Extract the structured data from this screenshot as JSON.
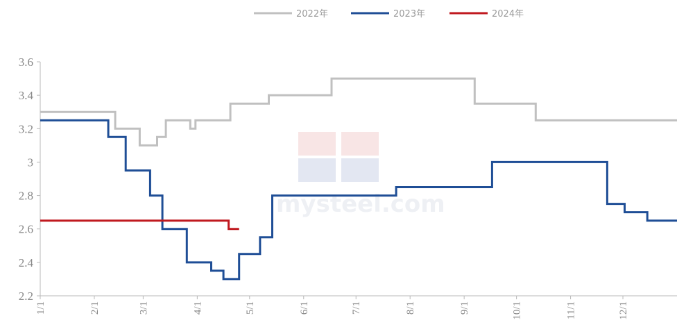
{
  "chart_data": {
    "type": "line",
    "step": true,
    "ylim": [
      2.2,
      3.6
    ],
    "yticks": [
      2.2,
      2.4,
      2.6,
      2.8,
      3,
      3.2,
      3.4,
      3.6
    ],
    "ytick_labels": [
      "2.2",
      "2.4",
      "2.6",
      "2.8",
      "3",
      "3.2",
      "3.4",
      "3.6"
    ],
    "xlim": [
      1,
      366
    ],
    "x_ticks": [
      {
        "label": "1/1",
        "day": 1
      },
      {
        "label": "2/1",
        "day": 32
      },
      {
        "label": "3/1",
        "day": 60
      },
      {
        "label": "4/1",
        "day": 91
      },
      {
        "label": "5/1",
        "day": 121
      },
      {
        "label": "6/1",
        "day": 152
      },
      {
        "label": "7/1",
        "day": 182
      },
      {
        "label": "8/1",
        "day": 213
      },
      {
        "label": "9/1",
        "day": 244
      },
      {
        "label": "10/1",
        "day": 274
      },
      {
        "label": "11/1",
        "day": 305
      },
      {
        "label": "12/1",
        "day": 335
      }
    ],
    "grid": false,
    "legend_position": "top-center",
    "watermark": "mysteel.com",
    "series": [
      {
        "name": "2022年",
        "color": "#c0c0c0",
        "points": [
          [
            1,
            3.3
          ],
          [
            44,
            3.3
          ],
          [
            44,
            3.2
          ],
          [
            58,
            3.2
          ],
          [
            58,
            3.1
          ],
          [
            68,
            3.1
          ],
          [
            68,
            3.15
          ],
          [
            73,
            3.15
          ],
          [
            73,
            3.25
          ],
          [
            87,
            3.25
          ],
          [
            87,
            3.2
          ],
          [
            90,
            3.2
          ],
          [
            90,
            3.25
          ],
          [
            110,
            3.25
          ],
          [
            110,
            3.35
          ],
          [
            132,
            3.35
          ],
          [
            132,
            3.4
          ],
          [
            168,
            3.4
          ],
          [
            168,
            3.5
          ],
          [
            250,
            3.5
          ],
          [
            250,
            3.35
          ],
          [
            285,
            3.35
          ],
          [
            285,
            3.25
          ],
          [
            366,
            3.25
          ]
        ]
      },
      {
        "name": "2023年",
        "color": "#1f4e96",
        "points": [
          [
            1,
            3.25
          ],
          [
            40,
            3.25
          ],
          [
            40,
            3.15
          ],
          [
            50,
            3.15
          ],
          [
            50,
            2.95
          ],
          [
            64,
            2.95
          ],
          [
            64,
            2.8
          ],
          [
            71,
            2.8
          ],
          [
            71,
            2.6
          ],
          [
            85,
            2.6
          ],
          [
            85,
            2.4
          ],
          [
            99,
            2.4
          ],
          [
            99,
            2.35
          ],
          [
            106,
            2.35
          ],
          [
            106,
            2.3
          ],
          [
            115,
            2.3
          ],
          [
            115,
            2.45
          ],
          [
            127,
            2.45
          ],
          [
            127,
            2.55
          ],
          [
            134,
            2.55
          ],
          [
            134,
            2.8
          ],
          [
            205,
            2.8
          ],
          [
            205,
            2.85
          ],
          [
            260,
            2.85
          ],
          [
            260,
            3.0
          ],
          [
            326,
            3.0
          ],
          [
            326,
            2.75
          ],
          [
            336,
            2.75
          ],
          [
            336,
            2.7
          ],
          [
            349,
            2.7
          ],
          [
            349,
            2.65
          ],
          [
            366,
            2.65
          ]
        ]
      },
      {
        "name": "2024年",
        "color": "#c0191f",
        "points": [
          [
            1,
            2.65
          ],
          [
            109,
            2.65
          ],
          [
            109,
            2.6
          ],
          [
            115,
            2.6
          ]
        ]
      }
    ]
  }
}
